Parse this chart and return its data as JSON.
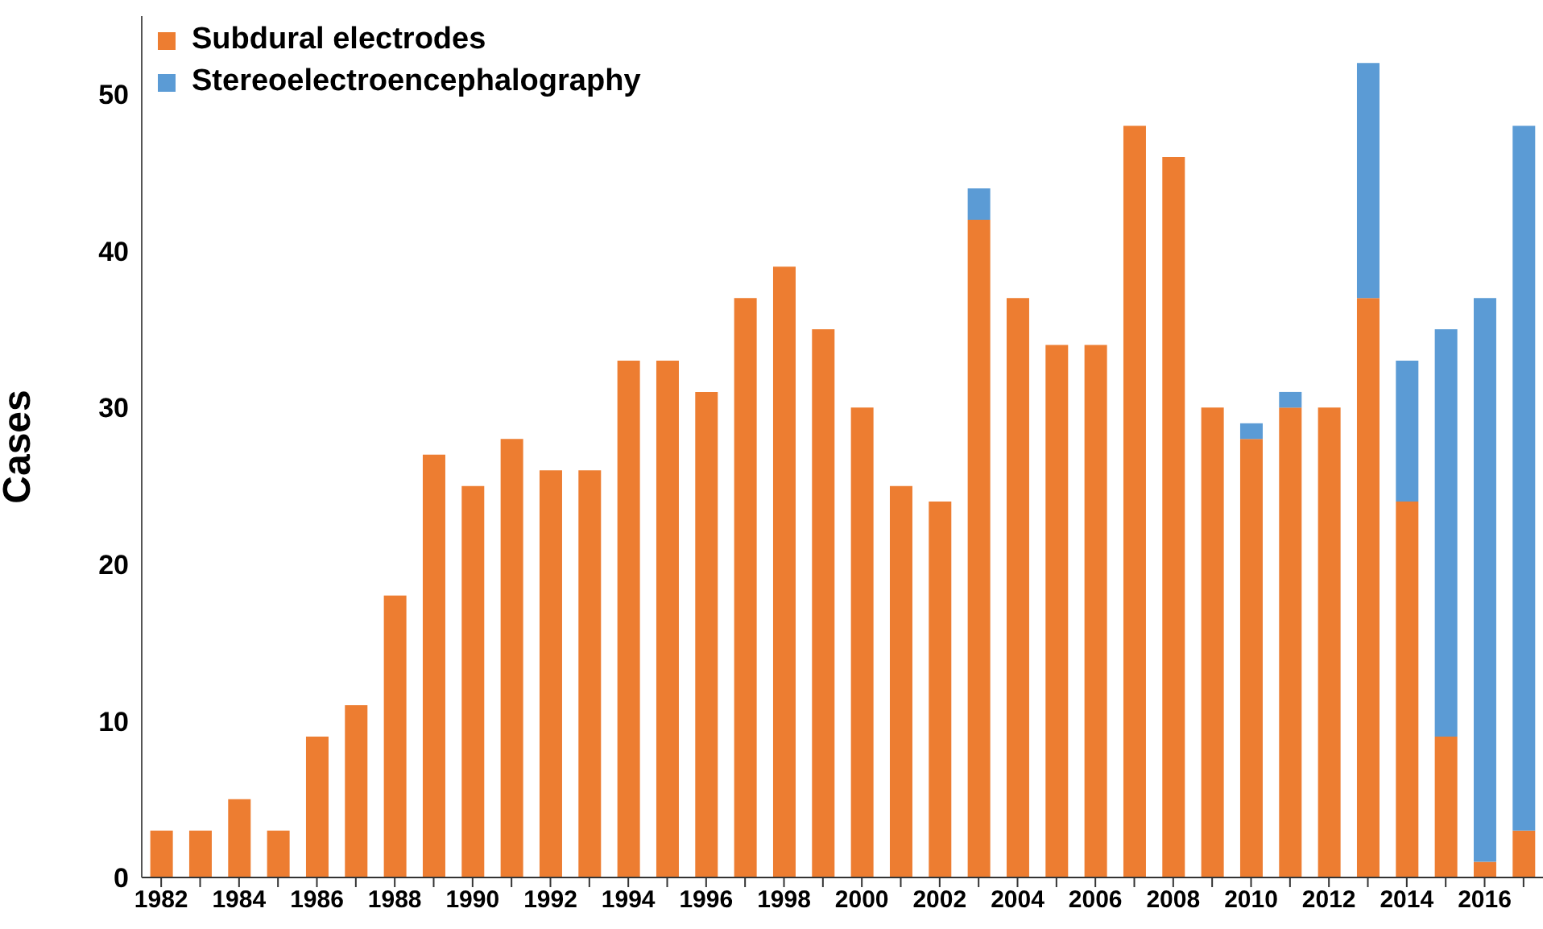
{
  "chart_data": {
    "type": "bar",
    "stacked": true,
    "ylabel": "Cases",
    "categories": [
      "1982",
      null,
      "1984",
      null,
      "1986",
      null,
      "1988",
      null,
      "1990",
      null,
      "1992",
      null,
      "1994",
      null,
      "1996",
      null,
      "1998",
      null,
      "2000",
      null,
      "2002",
      null,
      "2004",
      null,
      "2006",
      null,
      "2008",
      null,
      "2010",
      null,
      "2012",
      null,
      "2014",
      null,
      "2016",
      null
    ],
    "series": [
      {
        "name": "Subdural electrodes",
        "color": "#ed7d31",
        "values": [
          3,
          3,
          5,
          3,
          9,
          11,
          18,
          27,
          25,
          28,
          26,
          26,
          33,
          33,
          31,
          37,
          39,
          35,
          30,
          25,
          24,
          42,
          37,
          34,
          34,
          48,
          46,
          30,
          28,
          30,
          30,
          37,
          24,
          9,
          1,
          3
        ]
      },
      {
        "name": "Stereoelectroencephalography",
        "color": "#5b9bd5",
        "values": [
          0,
          0,
          0,
          0,
          0,
          0,
          0,
          0,
          0,
          0,
          0,
          0,
          0,
          0,
          0,
          0,
          0,
          0,
          0,
          0,
          0,
          2,
          0,
          0,
          0,
          0,
          0,
          0,
          1,
          1,
          0,
          15,
          9,
          26,
          36,
          45
        ]
      }
    ],
    "ylim": [
      0,
      55
    ],
    "yticks": [
      0,
      10,
      20,
      30,
      40,
      50
    ],
    "grid": false,
    "legend": "top left"
  }
}
